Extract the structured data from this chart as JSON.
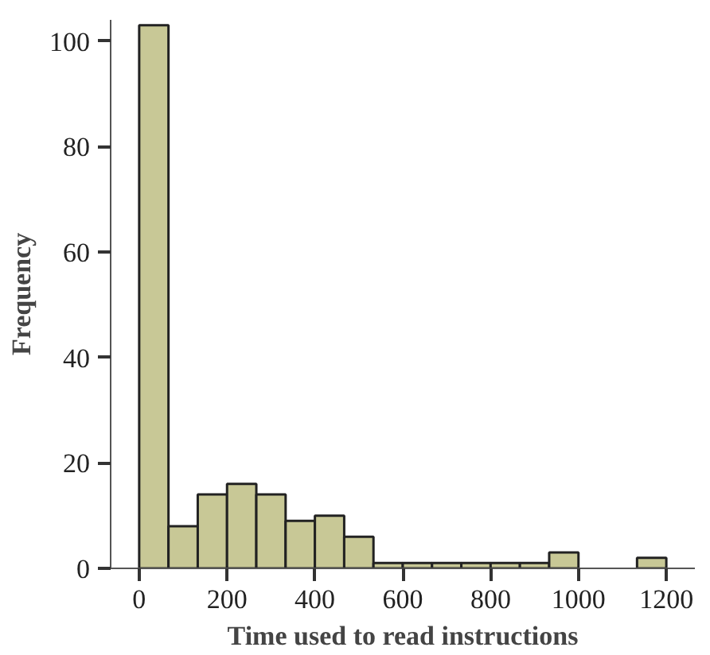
{
  "chart_data": {
    "type": "histogram",
    "xlabel": "Time used to read instructions",
    "ylabel": "Frequency",
    "bins": [
      0,
      66.67,
      133.33,
      200,
      266.67,
      333.33,
      400,
      466.67,
      533.33,
      600,
      666.67,
      733.33,
      800,
      866.67,
      933.33,
      1000,
      1066.67,
      1133.33,
      1200
    ],
    "values": [
      103,
      8,
      14,
      16,
      14,
      9,
      10,
      6,
      1,
      1,
      1,
      1,
      1,
      1,
      3,
      0,
      0,
      2
    ],
    "color": "#c8c896",
    "xlim": [
      -65,
      1265
    ],
    "ylim": [
      0,
      104
    ],
    "xticks": [
      0,
      200,
      400,
      600,
      800,
      1000,
      1200
    ],
    "yticks": [
      0,
      20,
      40,
      60,
      80,
      100
    ],
    "grid": false
  }
}
